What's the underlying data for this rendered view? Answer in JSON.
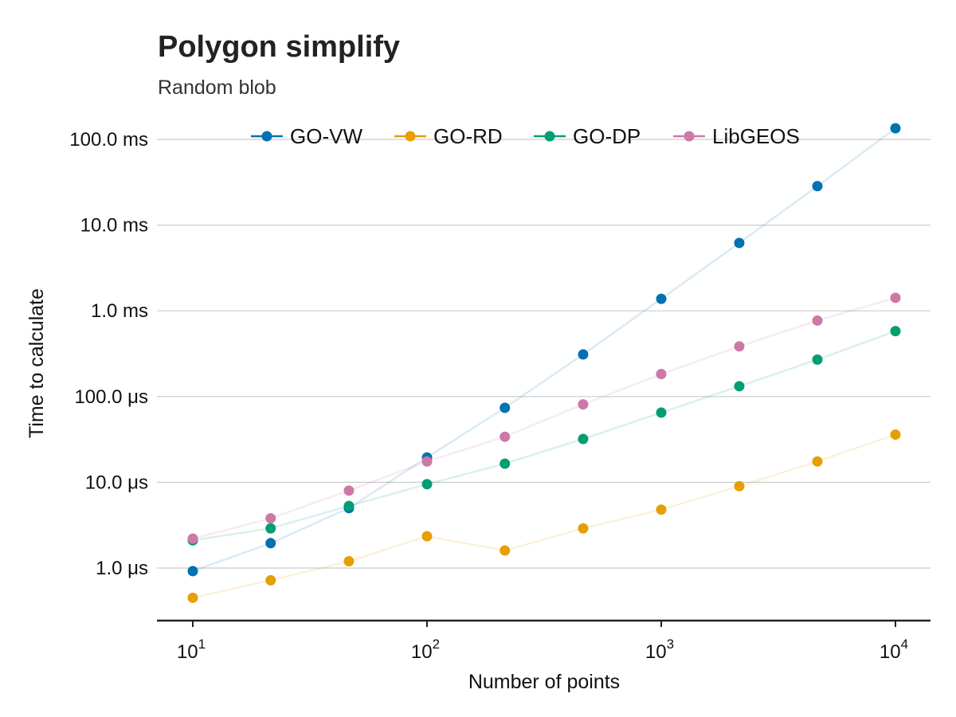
{
  "chart_data": {
    "type": "scatter",
    "title": "Polygon simplify",
    "subtitle": "Random blob",
    "xlabel": "Number of points",
    "ylabel": "Time to calculate",
    "x_scale": "log",
    "y_scale": "log",
    "x_ticks": [
      {
        "value": 10,
        "base": "10",
        "exp": "1"
      },
      {
        "value": 100,
        "base": "10",
        "exp": "2"
      },
      {
        "value": 1000,
        "base": "10",
        "exp": "3"
      },
      {
        "value": 10000,
        "base": "10",
        "exp": "4"
      }
    ],
    "y_ticks": [
      {
        "value": 1e-06,
        "label": "1.0 μs"
      },
      {
        "value": 1e-05,
        "label": "10.0 μs"
      },
      {
        "value": 0.0001,
        "label": "100.0 μs"
      },
      {
        "value": 0.001,
        "label": "1.0 ms"
      },
      {
        "value": 0.01,
        "label": "10.0 ms"
      },
      {
        "value": 0.1,
        "label": "100.0 ms"
      }
    ],
    "x": [
      10,
      21.5,
      46.4,
      100,
      215,
      464,
      1000,
      2154,
      4642,
      10000
    ],
    "legend_position": "top",
    "series": [
      {
        "name": "GO-VW",
        "color": "#0072b2",
        "values": [
          9.2e-07,
          1.95e-06,
          5e-06,
          1.95e-05,
          7.4e-05,
          0.00031,
          0.00138,
          0.0062,
          0.0285,
          0.135
        ]
      },
      {
        "name": "GO-RD",
        "color": "#e69f00",
        "values": [
          4.5e-07,
          7.2e-07,
          1.2e-06,
          2.35e-06,
          1.6e-06,
          2.9e-06,
          4.8e-06,
          9e-06,
          1.75e-05,
          3.6e-05
        ]
      },
      {
        "name": "GO-DP",
        "color": "#009e73",
        "values": [
          2.1e-06,
          2.9e-06,
          5.3e-06,
          9.5e-06,
          1.65e-05,
          3.2e-05,
          6.5e-05,
          0.000132,
          0.00027,
          0.00058
        ]
      },
      {
        "name": "LibGEOS",
        "color": "#cc79a7",
        "values": [
          2.2e-06,
          3.8e-06,
          8e-06,
          1.75e-05,
          3.4e-05,
          8.1e-05,
          0.000183,
          0.000385,
          0.00077,
          0.00142
        ]
      }
    ]
  }
}
